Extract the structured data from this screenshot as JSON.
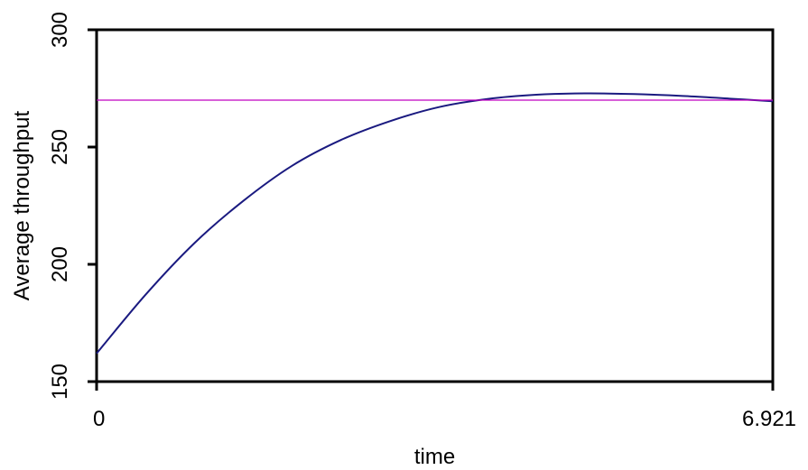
{
  "chart_data": {
    "type": "line",
    "xlabel": "time",
    "ylabel": "Average throughput",
    "xlim": [
      0,
      6.921
    ],
    "ylim": [
      150,
      300
    ],
    "x_ticks": [
      {
        "value": 0,
        "label": "0"
      },
      {
        "value": 6.921,
        "label": "6.921"
      }
    ],
    "y_ticks": [
      {
        "value": 150,
        "label": "150"
      },
      {
        "value": 200,
        "label": "200"
      },
      {
        "value": 250,
        "label": "250"
      },
      {
        "value": 300,
        "label": "300"
      }
    ],
    "grid": false,
    "legend": "none",
    "series": [
      {
        "color": "#1a1a80",
        "x": [
          0,
          0.5,
          1.0,
          1.5,
          2.0,
          2.5,
          3.0,
          3.5,
          4.0,
          4.5,
          5.0,
          5.5,
          6.0,
          6.5,
          6.921
        ],
        "y": [
          162,
          187,
          209,
          227,
          242,
          253,
          261,
          267,
          270.5,
          272.3,
          272.9,
          272.6,
          271.8,
          270.6,
          269.5
        ]
      },
      {
        "color": "#c000c0",
        "x": [
          0,
          6.921
        ],
        "y": [
          270,
          270
        ]
      }
    ]
  }
}
